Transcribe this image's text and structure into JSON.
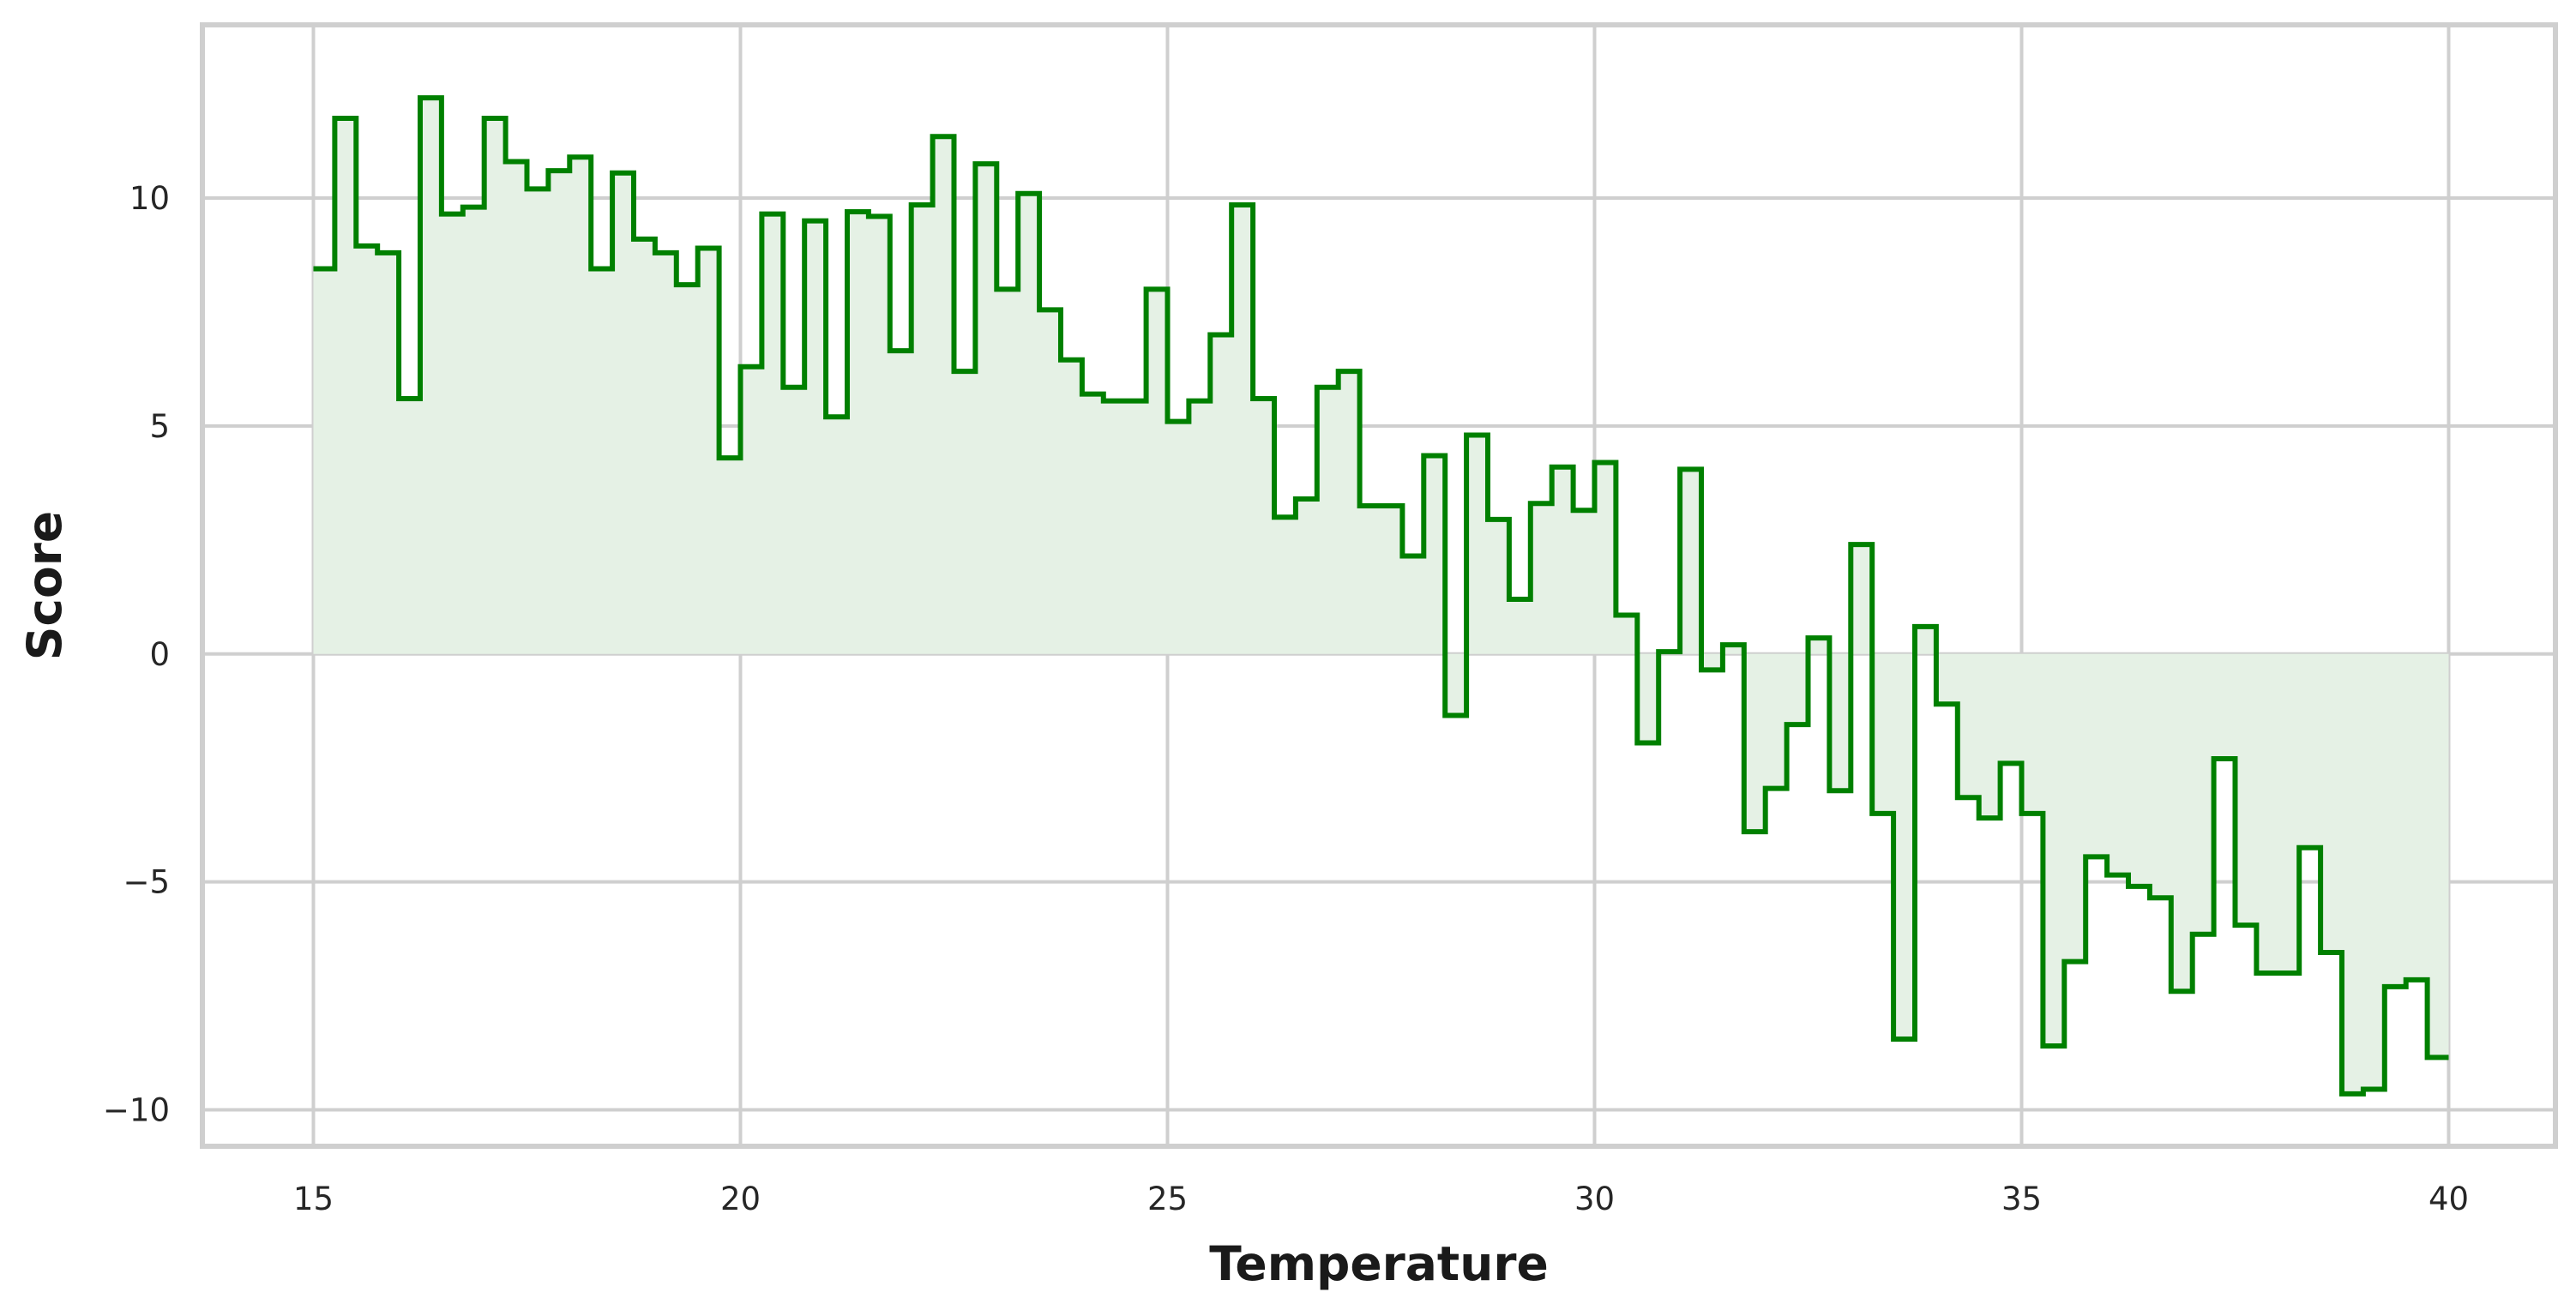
{
  "chart_data": {
    "type": "area",
    "style": "step-post",
    "title": "",
    "xlabel": "Temperature",
    "ylabel": "Score",
    "xlim": [
      13.7,
      41.25
    ],
    "ylim": [
      -10.8,
      13.8
    ],
    "xticks": [
      15,
      20,
      25,
      30,
      35,
      40
    ],
    "xtick_labels": [
      "15",
      "20",
      "25",
      "30",
      "35",
      "40"
    ],
    "yticks": [
      -10,
      -5,
      0,
      5,
      10
    ],
    "ytick_labels": [
      "−10",
      "−5",
      "0",
      "5",
      "10"
    ],
    "grid": true,
    "legend": "none",
    "colors": {
      "line": "#008000",
      "fill": "#e5f1e5",
      "grid": "#cfcfcf",
      "frame": "#cfcfcf"
    },
    "series": [
      {
        "x": [
          15.0,
          15.25,
          15.5,
          15.75,
          16.0,
          16.25,
          16.5,
          16.75,
          17.0,
          17.25,
          17.5,
          17.75,
          18.0,
          18.25,
          18.5,
          18.75,
          19.0,
          19.25,
          19.5,
          19.75,
          20.0,
          20.25,
          20.5,
          20.75,
          21.0,
          21.25,
          21.5,
          21.75,
          22.0,
          22.25,
          22.5,
          22.75,
          23.0,
          23.25,
          23.5,
          23.75,
          24.0,
          24.25,
          24.5,
          24.75,
          25.0,
          25.25,
          25.5,
          25.75,
          26.0,
          26.25,
          26.5,
          26.75,
          27.0,
          27.25,
          27.5,
          27.75,
          28.0,
          28.25,
          28.5,
          28.75,
          29.0,
          29.25,
          29.5,
          29.75,
          30.0,
          30.25,
          30.5,
          30.75,
          31.0,
          31.25,
          31.5,
          31.75,
          32.0,
          32.25,
          32.5,
          32.75,
          33.0,
          33.25,
          33.5,
          33.75,
          34.0,
          34.25,
          34.5,
          34.75,
          35.0,
          35.25,
          35.5,
          35.75,
          36.0,
          36.25,
          36.5,
          36.75,
          37.0,
          37.25,
          37.5,
          37.75,
          38.0,
          38.25,
          38.5,
          38.75,
          39.0,
          39.25,
          39.5,
          39.75,
          40.0
        ],
        "y": [
          8.45,
          11.75,
          8.95,
          8.8,
          5.6,
          12.2,
          9.65,
          9.8,
          11.75,
          10.8,
          10.2,
          10.6,
          10.9,
          8.45,
          10.55,
          9.1,
          8.8,
          8.1,
          8.9,
          4.3,
          6.3,
          9.65,
          5.85,
          9.5,
          5.2,
          9.7,
          9.6,
          6.65,
          9.85,
          11.35,
          6.2,
          10.75,
          8.0,
          10.1,
          7.55,
          6.45,
          5.7,
          5.55,
          5.55,
          8.0,
          5.1,
          5.55,
          7.0,
          9.85,
          5.6,
          3.0,
          3.4,
          5.85,
          6.2,
          3.25,
          3.25,
          2.15,
          4.35,
          -1.35,
          4.8,
          2.95,
          1.2,
          3.3,
          4.1,
          3.15,
          4.2,
          0.85,
          -1.95,
          0.05,
          4.05,
          -0.35,
          0.2,
          -3.9,
          -2.95,
          -1.55,
          0.35,
          -3.0,
          2.4,
          -3.5,
          -8.45,
          0.6,
          -1.1,
          -3.15,
          -3.6,
          -2.4,
          -3.5,
          -8.6,
          -6.75,
          -4.45,
          -4.85,
          -5.1,
          -5.35,
          -7.4,
          -6.15,
          -2.3,
          -5.95,
          -7.0,
          -7.0,
          -4.25,
          -6.55,
          -9.65,
          -9.55,
          -7.3,
          -7.15,
          -8.85,
          -8.85
        ]
      }
    ]
  }
}
